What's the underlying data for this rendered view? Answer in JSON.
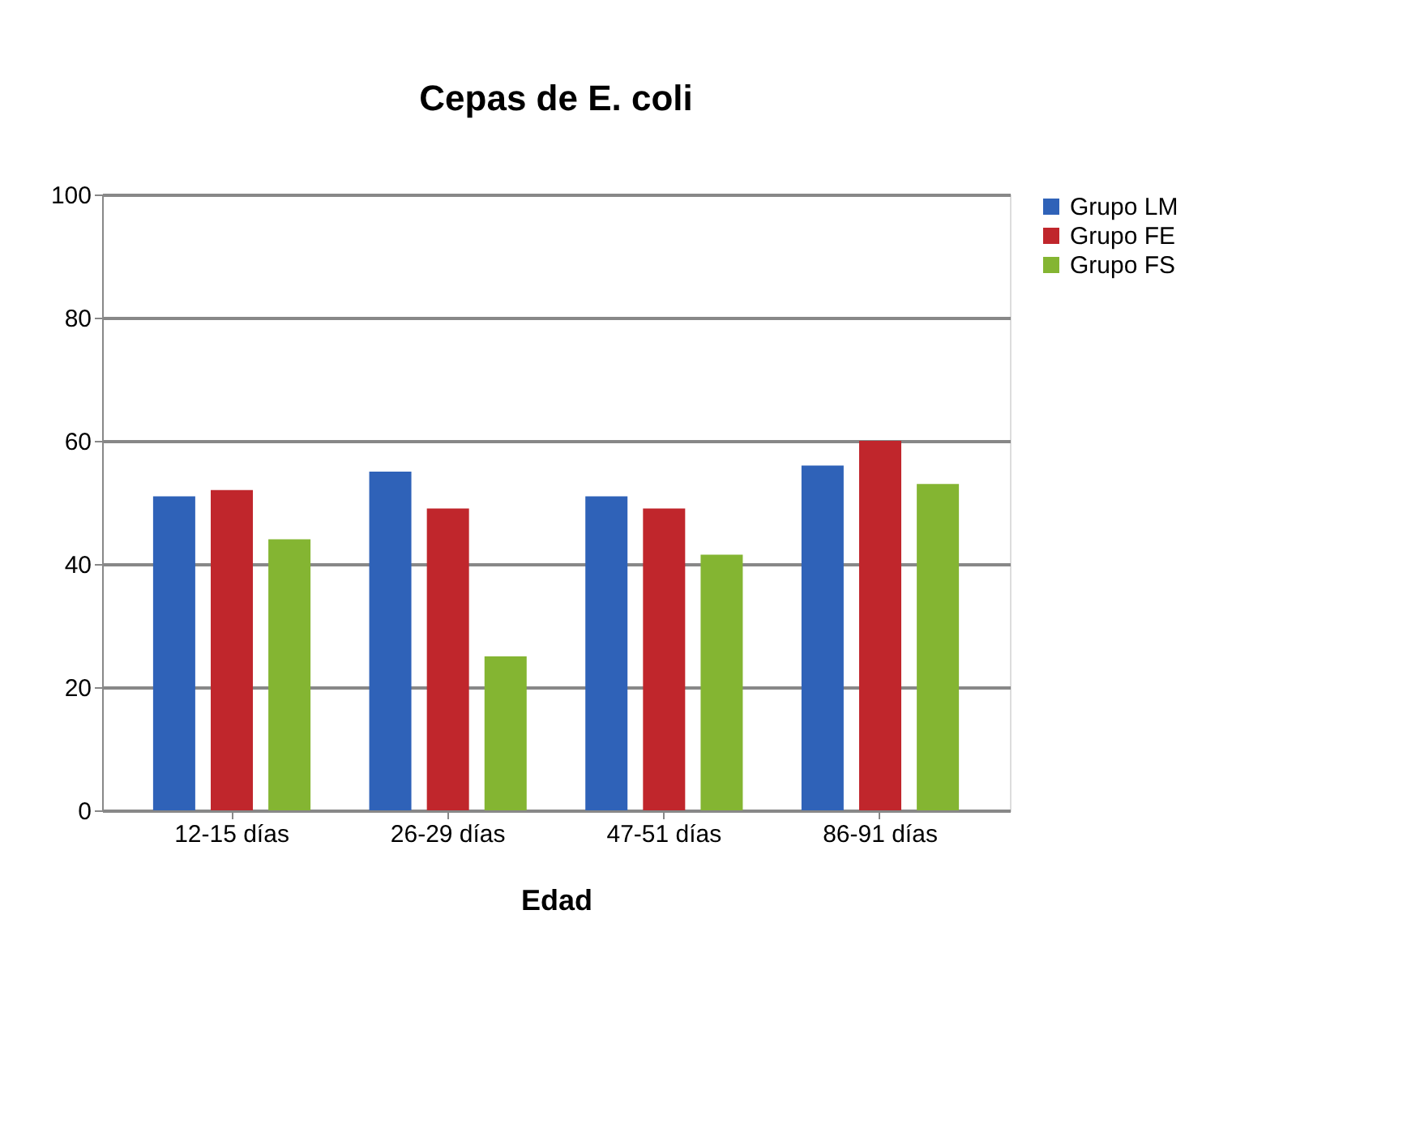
{
  "chart_data": {
    "type": "bar",
    "title": "Cepas de E. coli",
    "xlabel": "Edad",
    "categories": [
      "12-15 días",
      "26-29 días",
      "47-51 días",
      "86-91 días"
    ],
    "series": [
      {
        "name": "Grupo LM",
        "color": "#2f62b8",
        "values": [
          51,
          55,
          51,
          56
        ]
      },
      {
        "name": "Grupo FE",
        "color": "#c0262c",
        "values": [
          52,
          49,
          49,
          60
        ]
      },
      {
        "name": "Grupo FS",
        "color": "#84b532",
        "values": [
          44,
          25,
          41.5,
          53
        ]
      }
    ],
    "ylim": [
      0,
      100
    ],
    "yticks": [
      0,
      20,
      40,
      60,
      80,
      100
    ],
    "grid": "y",
    "legend": "right"
  }
}
